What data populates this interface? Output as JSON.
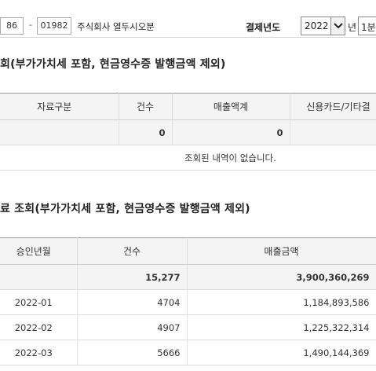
{
  "header": {
    "bizno_part2": "86",
    "bizno_part3": "01982",
    "company": "주식회사 열두시오분",
    "year_label": "결제년도",
    "year_value": "2022",
    "year_unit": "년",
    "quarter_value": "1분"
  },
  "section1": {
    "title": "회(부가가치세 포함, 현금영수증 발행금액 제외)",
    "columns": [
      "자료구분",
      "건수",
      "매출액계",
      "신용카드/기타결"
    ],
    "total": {
      "count": "0",
      "amount": "0"
    },
    "empty_message": "조회된 내역이 없습니다."
  },
  "section2": {
    "title": "료 조회(부가가치세 포함, 현금영수증 발행금액 제외)",
    "columns": [
      "승인년월",
      "건수",
      "매출금액"
    ],
    "total": {
      "count": "15,277",
      "amount": "3,900,360,269"
    },
    "rows": [
      {
        "month": "2022-01",
        "count": "4704",
        "amount": "1,184,893,586"
      },
      {
        "month": "2022-02",
        "count": "4907",
        "amount": "1,225,322,314"
      },
      {
        "month": "2022-03",
        "count": "5666",
        "amount": "1,490,144,369"
      }
    ]
  }
}
